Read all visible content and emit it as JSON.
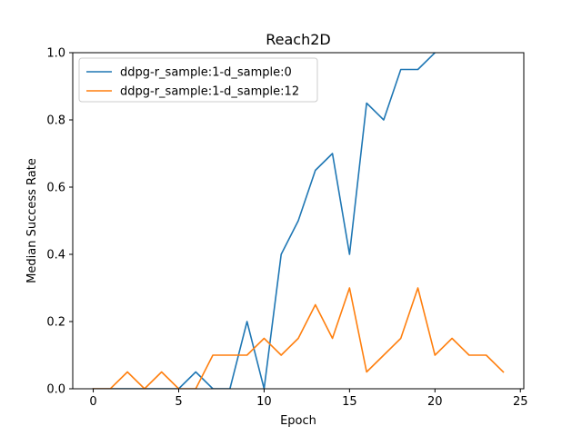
{
  "chart_data": {
    "type": "line",
    "title": "Reach2D",
    "xlabel": "Epoch",
    "ylabel": "Median Success Rate",
    "xlim": [
      -1.2,
      25.2
    ],
    "ylim": [
      0.0,
      1.0
    ],
    "xticks": [
      0,
      5,
      10,
      15,
      20,
      25
    ],
    "xtick_labels": [
      "0",
      "5",
      "10",
      "15",
      "20",
      "25"
    ],
    "yticks": [
      0.0,
      0.2,
      0.4,
      0.6,
      0.8,
      1.0
    ],
    "ytick_labels": [
      "0.0",
      "0.2",
      "0.4",
      "0.6",
      "0.8",
      "1.0"
    ],
    "grid": false,
    "legend_position": "top-left",
    "x": [
      0,
      1,
      2,
      3,
      4,
      5,
      6,
      7,
      8,
      9,
      10,
      11,
      12,
      13,
      14,
      15,
      16,
      17,
      18,
      19,
      20,
      21,
      22,
      23,
      24
    ],
    "series": [
      {
        "name": "ddpg-r_sample:1-d_sample:0",
        "color": "#1f77b4",
        "x": [
          0,
          1,
          2,
          3,
          4,
          5,
          6,
          7,
          8,
          9,
          10,
          11,
          12,
          13,
          14,
          15,
          16,
          17,
          18,
          19,
          20
        ],
        "values": [
          0.0,
          0.0,
          0.0,
          0.0,
          0.0,
          0.0,
          0.05,
          0.0,
          0.0,
          0.2,
          0.0,
          0.4,
          0.5,
          0.65,
          0.7,
          0.4,
          0.85,
          0.8,
          0.95,
          0.95,
          1.0
        ]
      },
      {
        "name": "ddpg-r_sample:1-d_sample:12",
        "color": "#ff7f0e",
        "x": [
          0,
          1,
          2,
          3,
          4,
          5,
          6,
          7,
          8,
          9,
          10,
          11,
          12,
          13,
          14,
          15,
          16,
          17,
          18,
          19,
          20,
          21,
          22,
          23,
          24
        ],
        "values": [
          0.0,
          0.0,
          0.05,
          0.0,
          0.05,
          0.0,
          0.0,
          0.1,
          0.1,
          0.1,
          0.15,
          0.1,
          0.15,
          0.25,
          0.15,
          0.3,
          0.05,
          0.1,
          0.15,
          0.3,
          0.1,
          0.15,
          0.1,
          0.1,
          0.05
        ]
      }
    ]
  }
}
